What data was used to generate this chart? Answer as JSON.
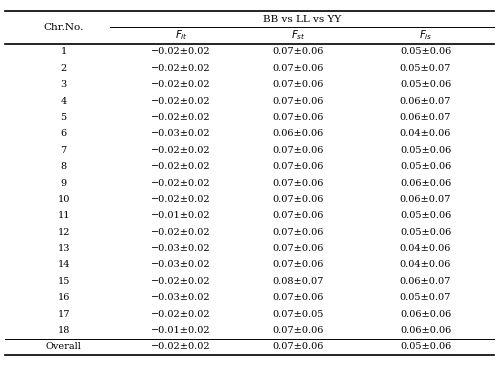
{
  "title": "BB vs LL vs YY",
  "row_labels": [
    "1",
    "2",
    "3",
    "4",
    "5",
    "6",
    "7",
    "8",
    "9",
    "10",
    "11",
    "12",
    "13",
    "14",
    "15",
    "16",
    "17",
    "18",
    "Overall"
  ],
  "fit_values": [
    "−0.02±0.02",
    "−0.02±0.02",
    "−0.02±0.02",
    "−0.02±0.02",
    "−0.02±0.02",
    "−0.03±0.02",
    "−0.02±0.02",
    "−0.02±0.02",
    "−0.02±0.02",
    "−0.02±0.02",
    "−0.01±0.02",
    "−0.02±0.02",
    "−0.03±0.02",
    "−0.03±0.02",
    "−0.02±0.02",
    "−0.03±0.02",
    "−0.02±0.02",
    "−0.01±0.02",
    "−0.02±0.02"
  ],
  "fst_values": [
    "0.07±0.06",
    "0.07±0.06",
    "0.07±0.06",
    "0.07±0.06",
    "0.07±0.06",
    "0.06±0.06",
    "0.07±0.06",
    "0.07±0.06",
    "0.07±0.06",
    "0.07±0.06",
    "0.07±0.06",
    "0.07±0.06",
    "0.07±0.06",
    "0.07±0.06",
    "0.08±0.07",
    "0.07±0.06",
    "0.07±0.05",
    "0.07±0.06",
    "0.07±0.06"
  ],
  "fis_values": [
    "0.05±0.06",
    "0.05±0.07",
    "0.05±0.06",
    "0.06±0.07",
    "0.06±0.07",
    "0.04±0.06",
    "0.05±0.06",
    "0.05±0.06",
    "0.06±0.06",
    "0.06±0.07",
    "0.05±0.06",
    "0.05±0.06",
    "0.04±0.06",
    "0.04±0.06",
    "0.06±0.07",
    "0.05±0.07",
    "0.06±0.06",
    "0.06±0.06",
    "0.05±0.06"
  ],
  "background_color": "#ffffff",
  "text_color": "#000000",
  "font_size": 7.0,
  "header_font_size": 7.5
}
